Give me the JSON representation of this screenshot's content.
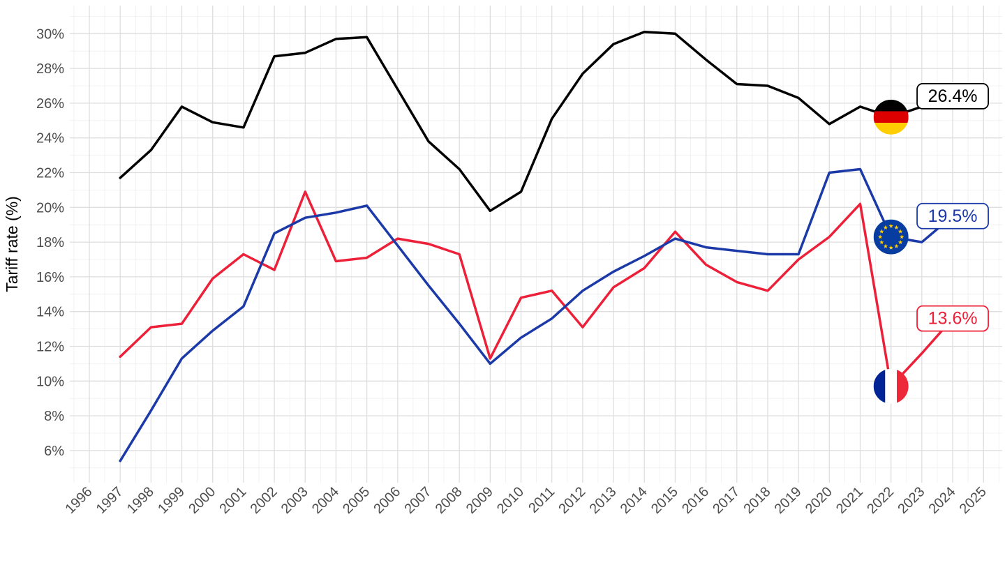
{
  "chart_data": {
    "type": "line",
    "title": "",
    "xlabel": "",
    "ylabel": "Tariff rate (%)",
    "x_tick_labels": [
      "1996",
      "1997",
      "1998",
      "1999",
      "2000",
      "2001",
      "2002",
      "2003",
      "2004",
      "2005",
      "2006",
      "2007",
      "2008",
      "2009",
      "2010",
      "2011",
      "2012",
      "2013",
      "2014",
      "2015",
      "2016",
      "2017",
      "2018",
      "2019",
      "2020",
      "2021",
      "2022",
      "2023",
      "2024",
      "2025"
    ],
    "y_tick_labels": [
      "30%",
      "28%",
      "26%",
      "24%",
      "22%",
      "20%",
      "18%",
      "16%",
      "14%",
      "12%",
      "10%",
      "8%",
      "6%"
    ],
    "y_tick_values": [
      30,
      28,
      26,
      24,
      22,
      20,
      18,
      16,
      14,
      12,
      10,
      8,
      6
    ],
    "xlim": [
      1995.4,
      2025.6
    ],
    "ylim": [
      4.2,
      31.6
    ],
    "grid": {
      "major": true,
      "minor": true,
      "major_color": "#dedede",
      "minor_color": "#efefef"
    },
    "axis_text_color": "#4d4d4d",
    "axis_title_color": "#000000",
    "x": [
      1997,
      1998,
      1999,
      2000,
      2001,
      2002,
      2003,
      2004,
      2005,
      2006,
      2007,
      2008,
      2009,
      2010,
      2011,
      2012,
      2013,
      2014,
      2015,
      2016,
      2017,
      2018,
      2019,
      2020,
      2021,
      2022,
      2023,
      2024
    ],
    "flag_year": 2022,
    "label_year": 2024,
    "series": [
      {
        "name": "germany",
        "color": "#000000",
        "flag": "de",
        "end_label": "26.4%",
        "values": [
          21.7,
          23.3,
          25.8,
          24.9,
          24.6,
          28.7,
          28.9,
          29.7,
          29.8,
          26.8,
          23.8,
          22.2,
          19.8,
          20.9,
          25.1,
          27.7,
          29.4,
          30.1,
          30.0,
          28.5,
          27.1,
          27.0,
          26.3,
          24.8,
          25.8,
          25.2,
          25.8,
          26.4
        ]
      },
      {
        "name": "european-union",
        "color": "#1b3aa8",
        "flag": "eu",
        "end_label": "19.5%",
        "values": [
          5.4,
          8.3,
          11.3,
          12.9,
          14.3,
          18.5,
          19.4,
          19.7,
          20.1,
          17.8,
          15.5,
          13.3,
          11.0,
          12.5,
          13.6,
          15.2,
          16.3,
          17.2,
          18.2,
          17.7,
          17.5,
          17.3,
          17.3,
          22.0,
          22.2,
          18.3,
          18.0,
          19.5
        ]
      },
      {
        "name": "france",
        "color": "#ed2039",
        "flag": "fr",
        "end_label": "13.6%",
        "values": [
          11.4,
          13.1,
          13.3,
          15.9,
          17.3,
          16.4,
          20.9,
          16.9,
          17.1,
          18.2,
          17.9,
          17.3,
          11.3,
          14.8,
          15.2,
          13.1,
          15.4,
          16.5,
          18.6,
          16.7,
          15.7,
          15.2,
          17.0,
          18.3,
          20.2,
          9.7,
          11.6,
          13.6
        ]
      }
    ],
    "flag_colors": {
      "de": [
        "#000000",
        "#dd0000",
        "#ffce00"
      ],
      "fr": [
        "#002395",
        "#ffffff",
        "#ed2939"
      ],
      "eu": {
        "field": "#073da0",
        "stars": "#ffcc00"
      }
    }
  }
}
